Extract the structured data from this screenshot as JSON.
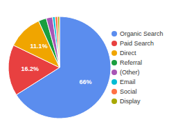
{
  "chart_data": {
    "type": "pie",
    "categories": [
      "Organic Search",
      "Paid Search",
      "Direct",
      "Referral",
      "(Other)",
      "Email",
      "Social",
      "Display"
    ],
    "values": [
      66.0,
      16.2,
      11.1,
      2.5,
      2.0,
      0.8,
      0.8,
      0.6
    ],
    "colors": [
      "#5b8dee",
      "#e84040",
      "#f0a500",
      "#1a9e3f",
      "#a855b5",
      "#00bcd4",
      "#ff7043",
      "#a8a800"
    ],
    "value_labels": [
      "66%",
      "16.2%",
      "11.1%",
      null,
      null,
      null,
      null,
      null
    ],
    "legend": "right"
  }
}
